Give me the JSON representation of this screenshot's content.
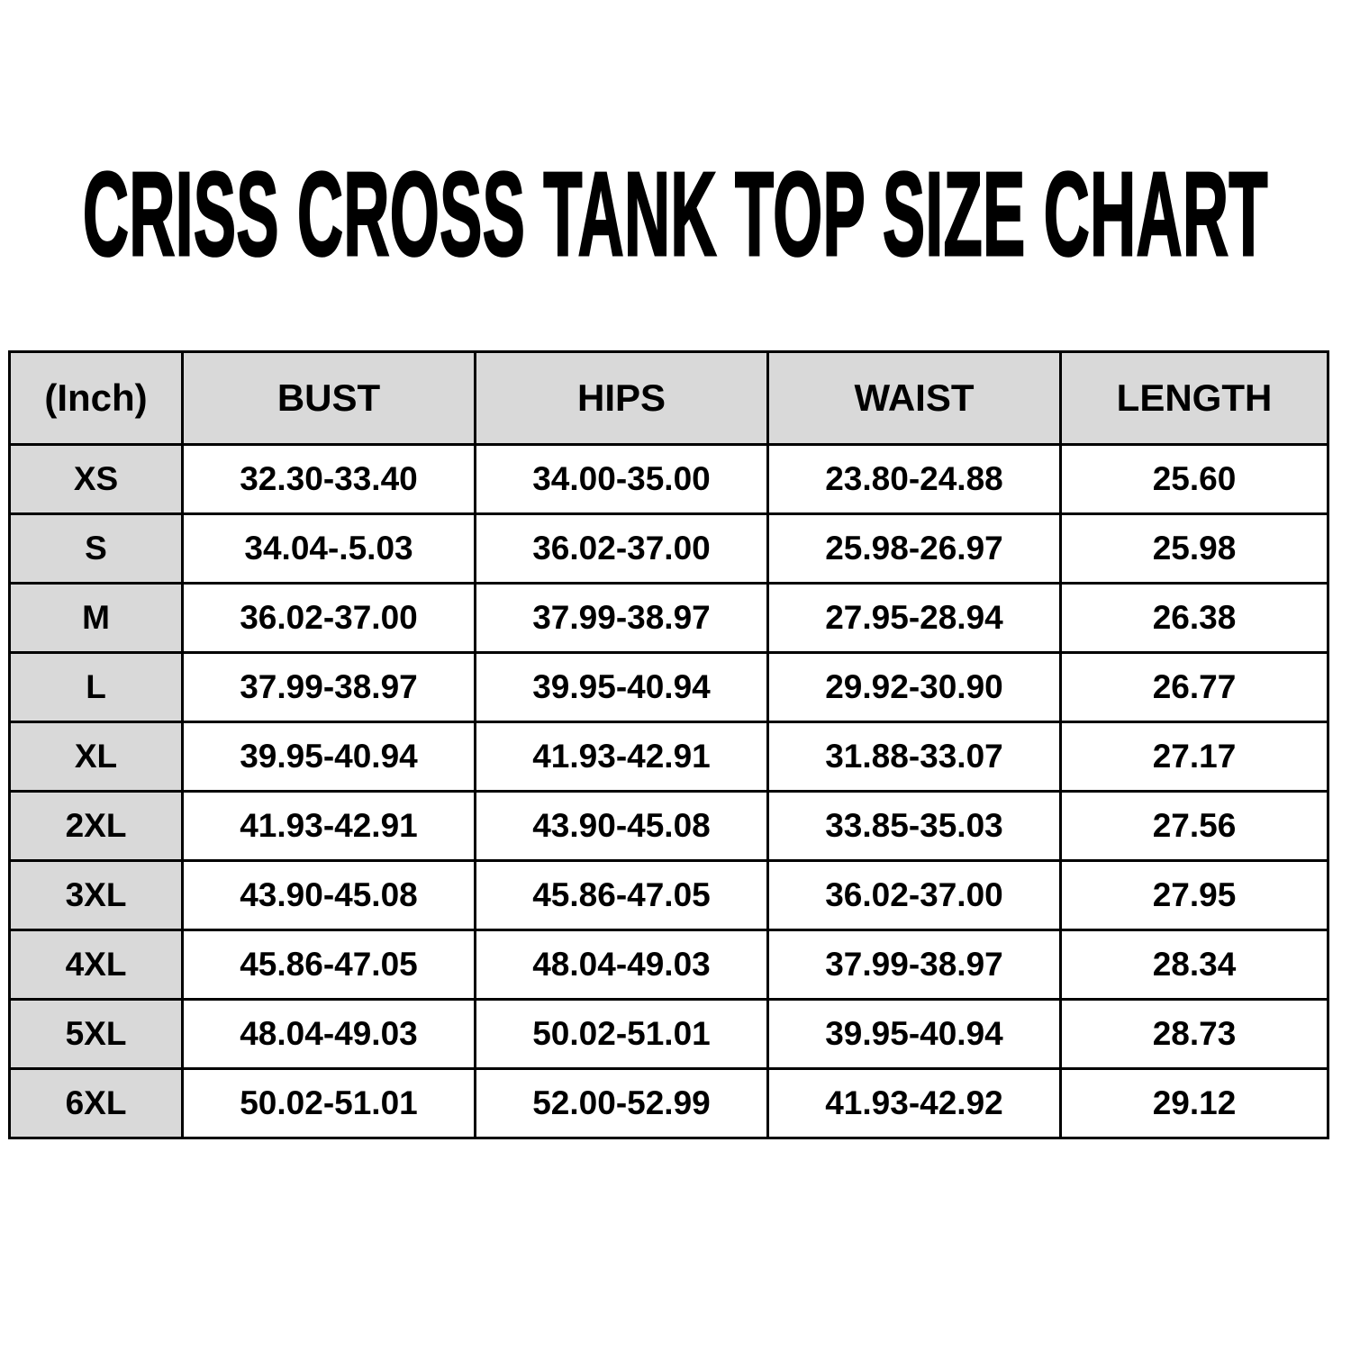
{
  "title": "CRISS CROSS TANK TOP SIZE CHART",
  "colors": {
    "header_bg": "#d9d9d9",
    "border": "#000000",
    "cell_bg": "#ffffff"
  },
  "table": {
    "headers": [
      "(Inch)",
      "BUST",
      "HIPS",
      "WAIST",
      "LENGTH"
    ],
    "rows": [
      [
        "XS",
        "32.30-33.40",
        "34.00-35.00",
        "23.80-24.88",
        "25.60"
      ],
      [
        "S",
        "34.04-.5.03",
        "36.02-37.00",
        "25.98-26.97",
        "25.98"
      ],
      [
        "M",
        "36.02-37.00",
        "37.99-38.97",
        "27.95-28.94",
        "26.38"
      ],
      [
        "L",
        "37.99-38.97",
        "39.95-40.94",
        "29.92-30.90",
        "26.77"
      ],
      [
        "XL",
        "39.95-40.94",
        "41.93-42.91",
        "31.88-33.07",
        "27.17"
      ],
      [
        "2XL",
        "41.93-42.91",
        "43.90-45.08",
        "33.85-35.03",
        "27.56"
      ],
      [
        "3XL",
        "43.90-45.08",
        "45.86-47.05",
        "36.02-37.00",
        "27.95"
      ],
      [
        "4XL",
        "45.86-47.05",
        "48.04-49.03",
        "37.99-38.97",
        "28.34"
      ],
      [
        "5XL",
        "48.04-49.03",
        "50.02-51.01",
        "39.95-40.94",
        "28.73"
      ],
      [
        "6XL",
        "50.02-51.01",
        "52.00-52.99",
        "41.93-42.92",
        "29.12"
      ]
    ]
  }
}
